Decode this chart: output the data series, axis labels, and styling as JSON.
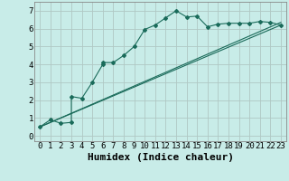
{
  "xlabel": "Humidex (Indice chaleur)",
  "bg_color": "#c8ece8",
  "grid_color": "#b0c8c4",
  "line_color": "#1a6b5a",
  "xlim": [
    -0.5,
    23.5
  ],
  "ylim": [
    -0.3,
    7.5
  ],
  "xticks": [
    0,
    1,
    2,
    3,
    4,
    5,
    6,
    7,
    8,
    9,
    10,
    11,
    12,
    13,
    14,
    15,
    16,
    17,
    18,
    19,
    20,
    21,
    22,
    23
  ],
  "yticks": [
    0,
    1,
    2,
    3,
    4,
    5,
    6,
    7
  ],
  "line1_x": [
    0,
    1,
    2,
    3,
    3,
    4,
    5,
    6,
    6,
    7,
    8,
    9,
    10,
    11,
    12,
    13,
    14,
    15,
    16,
    17,
    18,
    19,
    20,
    21,
    22,
    23
  ],
  "line1_y": [
    0.5,
    0.9,
    0.7,
    0.75,
    2.2,
    2.1,
    3.0,
    4.0,
    4.1,
    4.1,
    4.5,
    5.0,
    5.95,
    6.2,
    6.6,
    7.0,
    6.65,
    6.7,
    6.1,
    6.25,
    6.3,
    6.3,
    6.3,
    6.4,
    6.35,
    6.2
  ],
  "line2_x": [
    0,
    23
  ],
  "line2_y": [
    0.5,
    6.2
  ],
  "line3_x": [
    0,
    23
  ],
  "line3_y": [
    0.5,
    6.35
  ],
  "xlabel_fontsize": 8,
  "tick_fontsize": 6.5
}
